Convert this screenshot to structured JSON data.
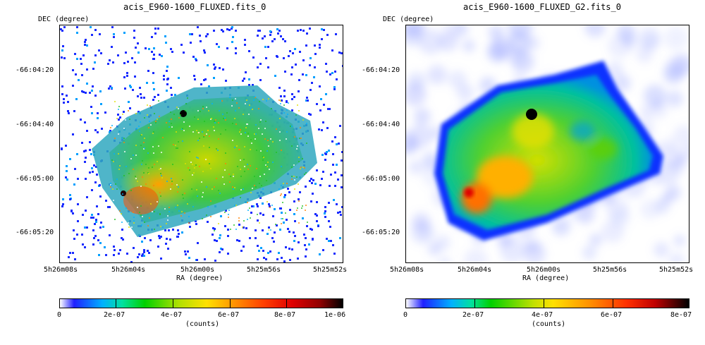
{
  "left": {
    "title": "acis_E960-1600_FLUXED.fits_0",
    "ylabel": "DEC (degree)",
    "xlabel": "RA (degree)",
    "yticks": [
      "-66:04:20",
      "-66:04:40",
      "-66:05:00",
      "-66:05:20"
    ],
    "xticks": [
      "5h26m08s",
      "5h26m04s",
      "5h26m00s",
      "5h25m56s",
      "5h25m52s"
    ],
    "colorbar": {
      "ticks": [
        "0",
        "2e-07",
        "4e-07",
        "6e-07",
        "8e-07",
        "1e-06"
      ],
      "label": "(counts)"
    }
  },
  "right": {
    "title": "acis_E960-1600_FLUXED_G2.fits_0",
    "ylabel": "DEC (degree)",
    "xlabel": "RA (degree)",
    "yticks": [
      "-66:04:20",
      "-66:04:40",
      "-66:05:00",
      "-66:05:20"
    ],
    "xticks": [
      "5h26m08s",
      "5h26m04s",
      "5h26m00s",
      "5h25m56s",
      "5h25m52s"
    ],
    "colorbar": {
      "ticks": [
        "0",
        "2e-07",
        "4e-07",
        "6e-07",
        "8e-07"
      ],
      "label": "(counts)"
    }
  },
  "colors": {
    "map_low": "#3030ff",
    "map_mid": "#00c000",
    "map_high": "#ff0000",
    "hotspot": "#000000"
  }
}
